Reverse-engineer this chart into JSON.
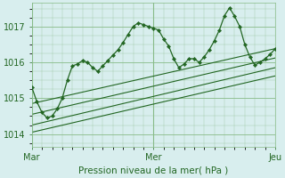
{
  "background_color": "#d8eeee",
  "grid_color": "#88bb88",
  "line_color": "#226622",
  "title": "Pression niveau de la mer( hPa )",
  "yticks": [
    1014,
    1015,
    1016,
    1017
  ],
  "xtick_labels": [
    "Mar",
    "Mer",
    "Jeu"
  ],
  "ylim": [
    1013.65,
    1017.65
  ],
  "xlim": [
    0,
    48
  ],
  "xtick_positions": [
    0,
    24,
    48
  ],
  "line1_x": [
    0,
    1,
    2,
    3,
    4,
    5,
    6,
    7,
    8,
    9,
    10,
    11,
    12,
    13,
    14,
    15,
    16,
    17,
    18,
    19,
    20,
    21,
    22,
    23,
    24,
    25,
    26,
    27,
    28,
    29,
    30,
    31,
    32,
    33,
    34,
    35,
    36,
    37,
    38,
    39,
    40,
    41,
    42,
    43,
    44,
    45,
    46,
    47,
    48
  ],
  "line1_y": [
    1015.3,
    1014.9,
    1014.6,
    1014.45,
    1014.5,
    1014.7,
    1015.0,
    1015.5,
    1015.9,
    1015.95,
    1016.05,
    1016.0,
    1015.85,
    1015.75,
    1015.9,
    1016.05,
    1016.2,
    1016.35,
    1016.55,
    1016.78,
    1017.0,
    1017.1,
    1017.05,
    1017.0,
    1016.95,
    1016.9,
    1016.65,
    1016.45,
    1016.1,
    1015.85,
    1015.95,
    1016.1,
    1016.1,
    1016.0,
    1016.15,
    1016.35,
    1016.6,
    1016.9,
    1017.3,
    1017.52,
    1017.28,
    1017.0,
    1016.5,
    1016.15,
    1015.92,
    1016.0,
    1016.1,
    1016.22,
    1016.38
  ],
  "line2_x": [
    0,
    48
  ],
  "line2_y": [
    1014.85,
    1016.38
  ],
  "line3_x": [
    0,
    48
  ],
  "line3_y": [
    1014.55,
    1016.12
  ],
  "line4_x": [
    0,
    48
  ],
  "line4_y": [
    1014.25,
    1015.85
  ],
  "line5_x": [
    0,
    48
  ],
  "line5_y": [
    1014.05,
    1015.62
  ]
}
